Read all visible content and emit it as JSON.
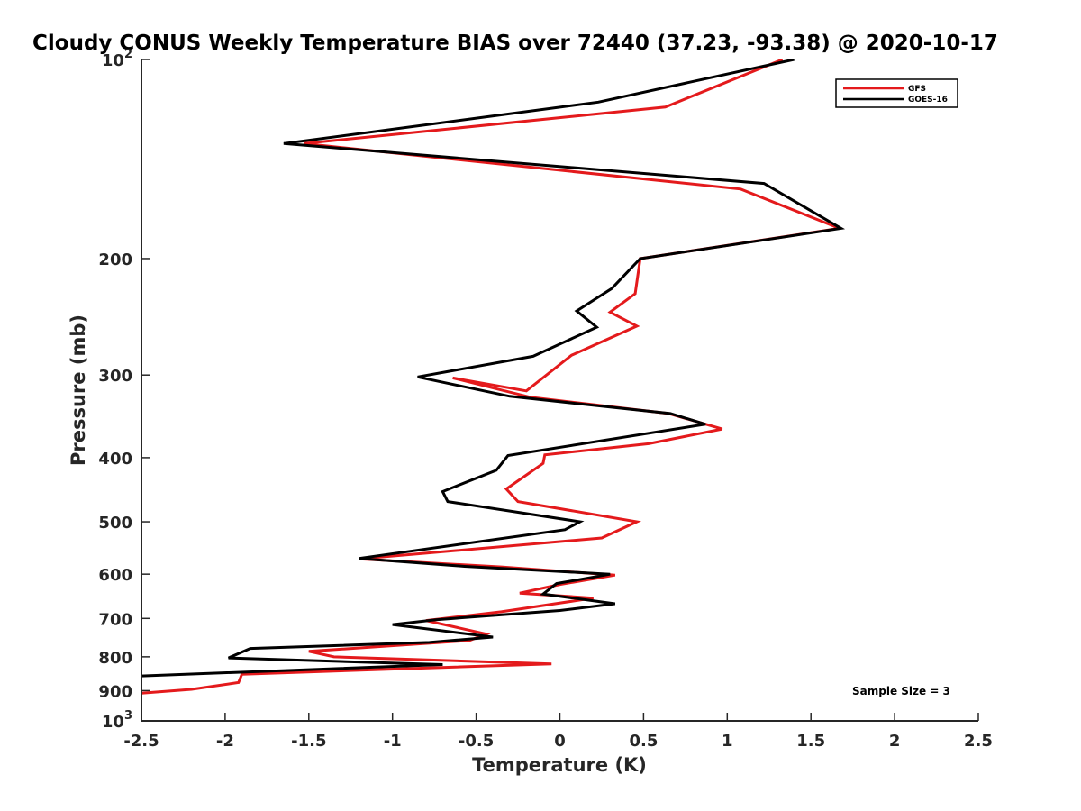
{
  "chart_data": {
    "type": "line",
    "title": "Cloudy CONUS Weekly Temperature BIAS over 72440 (37.23, -93.38) @ 2020-10-17",
    "xlabel": "Temperature (K)",
    "ylabel": "Pressure (mb)",
    "xlim": [
      -2.5,
      2.5
    ],
    "ylim": [
      100,
      1000
    ],
    "y_scale": "log",
    "y_reversed": true,
    "grid": false,
    "legend_position": "top-right",
    "x_ticks": [
      "-2.5",
      "-2",
      "-1.5",
      "-1",
      "-0.5",
      "0",
      "0.5",
      "1",
      "1.5",
      "2",
      "2.5"
    ],
    "y_ticks": [
      {
        "value": 100,
        "base": "10",
        "exp": "2"
      },
      {
        "value": 200,
        "label": "200"
      },
      {
        "value": 300,
        "label": "300"
      },
      {
        "value": 400,
        "label": "400"
      },
      {
        "value": 500,
        "label": "500"
      },
      {
        "value": 600,
        "label": "600"
      },
      {
        "value": 700,
        "label": "700"
      },
      {
        "value": 800,
        "label": "800"
      },
      {
        "value": 900,
        "label": "900"
      },
      {
        "value": 1000,
        "base": "10",
        "exp": "3"
      }
    ],
    "annotation": "Sample Size = 3",
    "series": [
      {
        "name": "GFS",
        "color": "#e41a1c",
        "points": [
          [
            1.33,
            100
          ],
          [
            0.63,
            118
          ],
          [
            -1.53,
            134
          ],
          [
            1.08,
            157
          ],
          [
            1.67,
            180
          ],
          [
            0.48,
            200
          ],
          [
            0.45,
            226
          ],
          [
            0.3,
            241
          ],
          [
            0.46,
            253
          ],
          [
            0.07,
            280
          ],
          [
            -0.2,
            317
          ],
          [
            -0.64,
            303
          ],
          [
            -0.18,
            324
          ],
          [
            0.65,
            343
          ],
          [
            0.97,
            362
          ],
          [
            0.53,
            381
          ],
          [
            -0.09,
            396
          ],
          [
            -0.1,
            408
          ],
          [
            -0.32,
            446
          ],
          [
            -0.25,
            466
          ],
          [
            0.46,
            500
          ],
          [
            0.25,
            529
          ],
          [
            -1.2,
            569
          ],
          [
            -0.35,
            585
          ],
          [
            0.33,
            602
          ],
          [
            0.0,
            622
          ],
          [
            -0.24,
            641
          ],
          [
            0.2,
            652
          ],
          [
            -0.35,
            684
          ],
          [
            -0.8,
            705
          ],
          [
            -0.44,
            739
          ],
          [
            -0.54,
            756
          ],
          [
            -1.5,
            785
          ],
          [
            -1.35,
            800
          ],
          [
            -0.05,
            820
          ],
          [
            -1.9,
            850
          ],
          [
            -1.92,
            875
          ],
          [
            -2.2,
            896
          ],
          [
            -2.5,
            908
          ]
        ]
      },
      {
        "name": "GOES-16",
        "color": "#000000",
        "points": [
          [
            1.4,
            100
          ],
          [
            0.23,
            116
          ],
          [
            -1.65,
            134
          ],
          [
            1.22,
            154
          ],
          [
            1.68,
            180
          ],
          [
            0.48,
            200
          ],
          [
            0.31,
            222
          ],
          [
            0.1,
            240
          ],
          [
            0.22,
            254
          ],
          [
            -0.16,
            281
          ],
          [
            -0.85,
            302
          ],
          [
            -0.3,
            323
          ],
          [
            0.66,
            343
          ],
          [
            0.87,
            356
          ],
          [
            -0.31,
            397
          ],
          [
            -0.38,
            418
          ],
          [
            -0.7,
            450
          ],
          [
            -0.67,
            466
          ],
          [
            0.12,
            500
          ],
          [
            0.03,
            514
          ],
          [
            -1.2,
            568
          ],
          [
            -0.57,
            584
          ],
          [
            0.3,
            600
          ],
          [
            -0.02,
            620
          ],
          [
            -0.1,
            643
          ],
          [
            0.33,
            665
          ],
          [
            0.0,
            681
          ],
          [
            -0.74,
            703
          ],
          [
            -1.0,
            715
          ],
          [
            -0.4,
            747
          ],
          [
            -0.78,
            761
          ],
          [
            -1.85,
            777
          ],
          [
            -1.98,
            803
          ],
          [
            -0.7,
            822
          ],
          [
            -2.5,
            855
          ]
        ]
      }
    ]
  }
}
